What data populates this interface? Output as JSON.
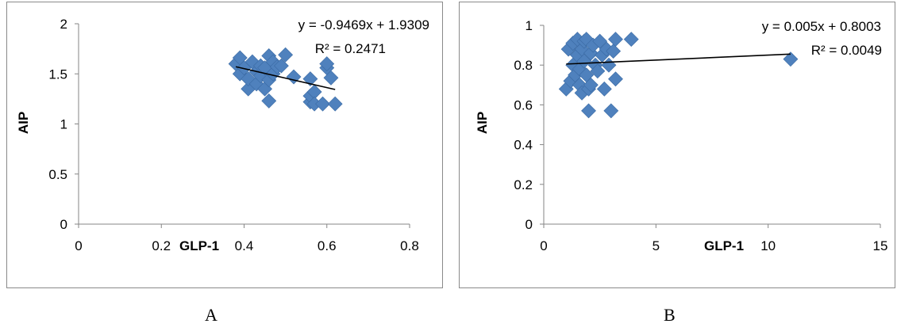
{
  "chart_data": [
    {
      "type": "scatter",
      "xlabel": "GLP-1",
      "ylabel": "AIP",
      "xlim": [
        0,
        0.8
      ],
      "ylim": [
        0,
        2
      ],
      "xticks": [
        "0",
        "0.2",
        "0.4",
        "0.6",
        "0.8"
      ],
      "yticks": [
        "0",
        "0.5",
        "1",
        "1.5",
        "2"
      ],
      "trendline": {
        "slope": -0.9469,
        "intercept": 1.9309,
        "x_range": [
          0.38,
          0.62
        ]
      },
      "equation": "y = -0.9469x + 1.9309",
      "r2": "R² = 0.2471",
      "marker_color": "#4f81bd",
      "points": [
        [
          0.38,
          1.6
        ],
        [
          0.39,
          1.5
        ],
        [
          0.39,
          1.66
        ],
        [
          0.4,
          1.56
        ],
        [
          0.41,
          1.35
        ],
        [
          0.41,
          1.45
        ],
        [
          0.42,
          1.62
        ],
        [
          0.43,
          1.4
        ],
        [
          0.43,
          1.52
        ],
        [
          0.44,
          1.58
        ],
        [
          0.44,
          1.48
        ],
        [
          0.45,
          1.35
        ],
        [
          0.45,
          1.56
        ],
        [
          0.46,
          1.68
        ],
        [
          0.46,
          1.44
        ],
        [
          0.46,
          1.23
        ],
        [
          0.47,
          1.62
        ],
        [
          0.47,
          1.5
        ],
        [
          0.48,
          1.57
        ],
        [
          0.49,
          1.58
        ],
        [
          0.5,
          1.69
        ],
        [
          0.52,
          1.47
        ],
        [
          0.56,
          1.45
        ],
        [
          0.56,
          1.22
        ],
        [
          0.56,
          1.28
        ],
        [
          0.57,
          1.32
        ],
        [
          0.57,
          1.2
        ],
        [
          0.59,
          1.2
        ],
        [
          0.6,
          1.56
        ],
        [
          0.6,
          1.6
        ],
        [
          0.61,
          1.46
        ],
        [
          0.62,
          1.2
        ]
      ]
    },
    {
      "type": "scatter",
      "xlabel": "GLP-1",
      "ylabel": "AIP",
      "xlim": [
        0,
        15
      ],
      "ylim": [
        0,
        1
      ],
      "xticks": [
        "0",
        "5",
        "10",
        "15"
      ],
      "yticks": [
        "0",
        "0.2",
        "0.4",
        "0.6",
        "0.8",
        "1"
      ],
      "trendline": {
        "slope": 0.005,
        "intercept": 0.8003,
        "x_range": [
          1,
          11
        ]
      },
      "equation": "y = 0.005x + 0.8003",
      "r2": "R² = 0.0049",
      "marker_color": "#4f81bd",
      "points": [
        [
          1.0,
          0.68
        ],
        [
          1.1,
          0.88
        ],
        [
          1.2,
          0.72
        ],
        [
          1.3,
          0.91
        ],
        [
          1.3,
          0.8
        ],
        [
          1.4,
          0.75
        ],
        [
          1.5,
          0.93
        ],
        [
          1.5,
          0.85
        ],
        [
          1.6,
          0.7
        ],
        [
          1.6,
          0.78
        ],
        [
          1.7,
          0.88
        ],
        [
          1.7,
          0.66
        ],
        [
          1.8,
          0.92
        ],
        [
          1.8,
          0.82
        ],
        [
          1.9,
          0.93
        ],
        [
          1.9,
          0.75
        ],
        [
          2.0,
          0.68
        ],
        [
          2.0,
          0.57
        ],
        [
          2.1,
          0.86
        ],
        [
          2.1,
          0.7
        ],
        [
          2.2,
          0.9
        ],
        [
          2.3,
          0.8
        ],
        [
          2.4,
          0.77
        ],
        [
          2.5,
          0.92
        ],
        [
          2.6,
          0.85
        ],
        [
          2.7,
          0.68
        ],
        [
          2.8,
          0.88
        ],
        [
          2.9,
          0.8
        ],
        [
          3.0,
          0.57
        ],
        [
          3.1,
          0.87
        ],
        [
          3.2,
          0.73
        ],
        [
          3.2,
          0.93
        ],
        [
          3.9,
          0.93
        ],
        [
          11.0,
          0.83
        ]
      ]
    }
  ],
  "captions": {
    "a": "A",
    "b": "B"
  }
}
